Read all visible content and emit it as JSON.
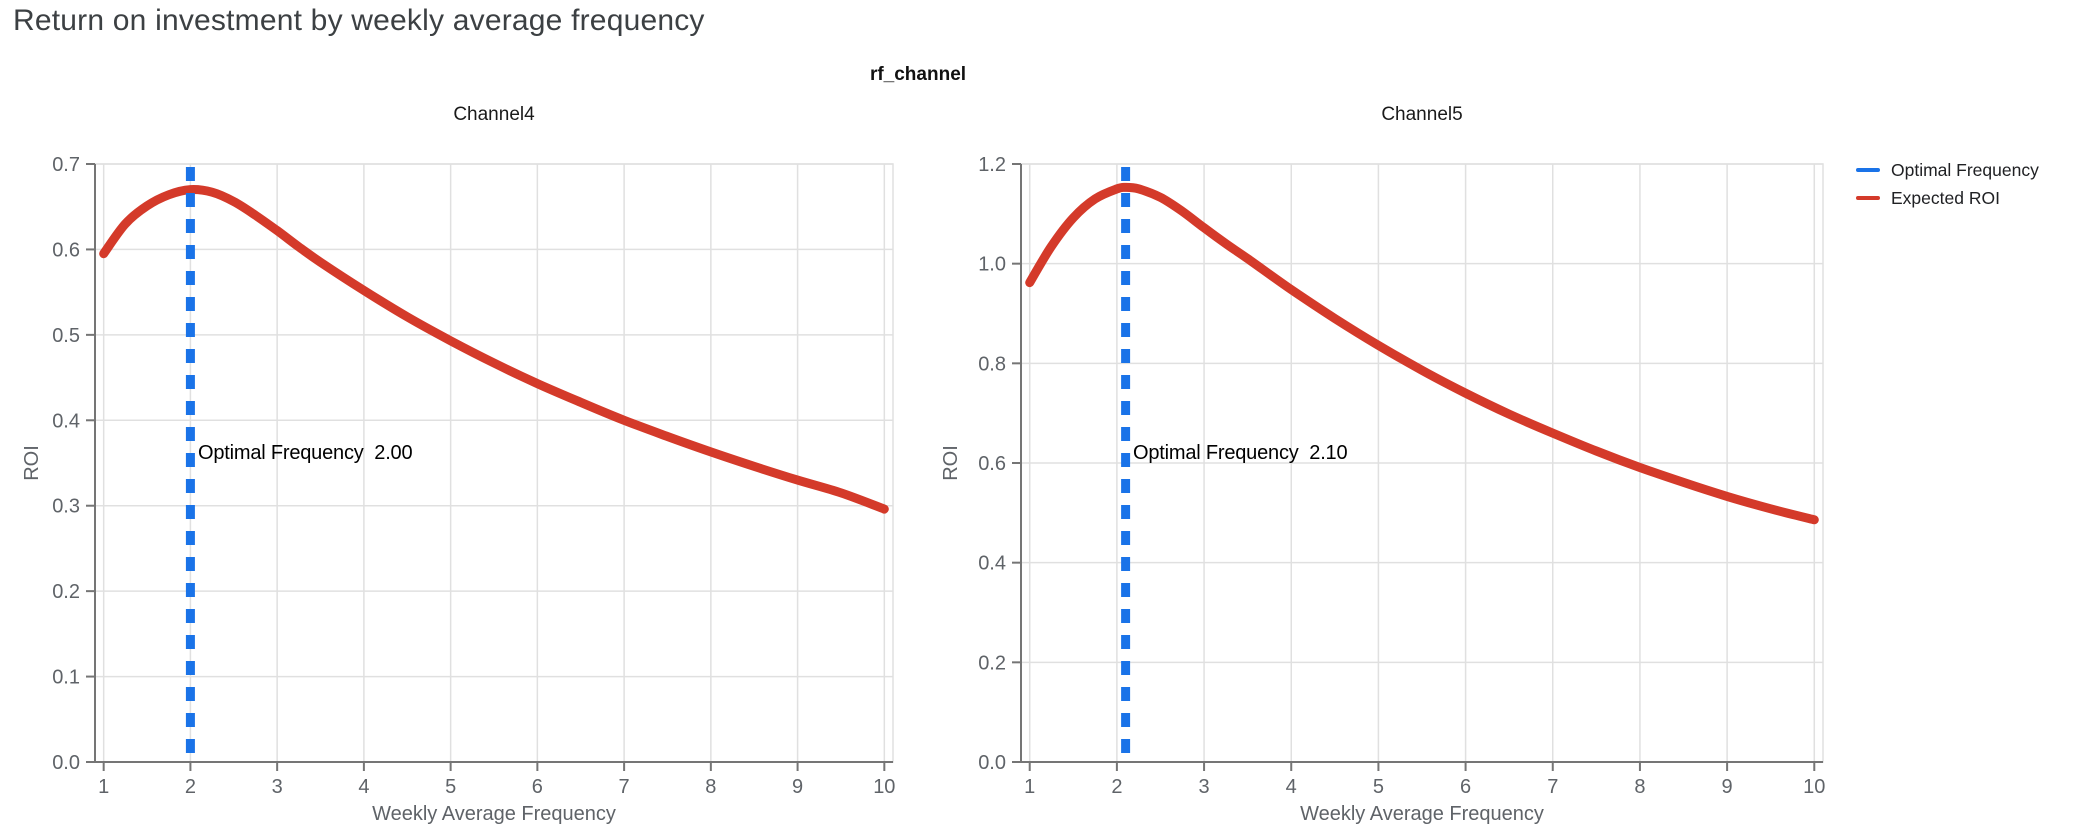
{
  "header": {
    "title": "Return on investment by weekly average frequency",
    "facet_label": "rf_channel"
  },
  "legend": {
    "items": [
      {
        "label": "Optimal Frequency",
        "color": "#1a73e8"
      },
      {
        "label": "Expected ROI",
        "color": "#d43a2a"
      }
    ]
  },
  "colors": {
    "grid": "#e0e0e0",
    "axis": "#757575",
    "tick_label": "#5f6368",
    "title_text": "#3c4043"
  },
  "chart_data": [
    {
      "type": "line",
      "title": "Channel4",
      "xlabel": "Weekly Average Frequency",
      "ylabel": "ROI",
      "xlim": [
        0.9,
        10.1
      ],
      "ylim": [
        0.0,
        0.7
      ],
      "xticks": [
        1,
        2,
        3,
        4,
        5,
        6,
        7,
        8,
        9,
        10
      ],
      "xtick_labels": [
        "1",
        "2",
        "3",
        "4",
        "5",
        "6",
        "7",
        "8",
        "9",
        "10"
      ],
      "yticks": [
        0.0,
        0.1,
        0.2,
        0.3,
        0.4,
        0.5,
        0.6,
        0.7
      ],
      "ytick_labels": [
        "0.0",
        "0.1",
        "0.2",
        "0.3",
        "0.4",
        "0.5",
        "0.6",
        "0.7"
      ],
      "grid": true,
      "annotation": "Optimal Frequency  2.00",
      "vline": {
        "name": "Optimal Frequency",
        "x": 2.0,
        "color": "#1a73e8",
        "style": "dashed"
      },
      "series": [
        {
          "name": "Expected ROI",
          "color": "#d43a2a",
          "points": [
            [
              1,
              0.595
            ],
            [
              1.25,
              0.63
            ],
            [
              1.5,
              0.651
            ],
            [
              1.75,
              0.664
            ],
            [
              2,
              0.67
            ],
            [
              2.25,
              0.667
            ],
            [
              2.5,
              0.656
            ],
            [
              2.75,
              0.64
            ],
            [
              3,
              0.622
            ],
            [
              3.25,
              0.603
            ],
            [
              3.5,
              0.585
            ],
            [
              4,
              0.552
            ],
            [
              4.5,
              0.521
            ],
            [
              5,
              0.493
            ],
            [
              5.5,
              0.467
            ],
            [
              6,
              0.443
            ],
            [
              6.5,
              0.421
            ],
            [
              7,
              0.4
            ],
            [
              7.5,
              0.381
            ],
            [
              8,
              0.363
            ],
            [
              8.5,
              0.346
            ],
            [
              9,
              0.33
            ],
            [
              9.5,
              0.315
            ],
            [
              10,
              0.296
            ]
          ]
        }
      ]
    },
    {
      "type": "line",
      "title": "Channel5",
      "xlabel": "Weekly Average Frequency",
      "ylabel": "ROI",
      "xlim": [
        0.9,
        10.1
      ],
      "ylim": [
        0.0,
        1.2
      ],
      "xticks": [
        1,
        2,
        3,
        4,
        5,
        6,
        7,
        8,
        9,
        10
      ],
      "xtick_labels": [
        "1",
        "2",
        "3",
        "4",
        "5",
        "6",
        "7",
        "8",
        "9",
        "10"
      ],
      "yticks": [
        0.0,
        0.2,
        0.4,
        0.6,
        0.8,
        1.0,
        1.2
      ],
      "ytick_labels": [
        "0.0",
        "0.2",
        "0.4",
        "0.6",
        "0.8",
        "1.0",
        "1.2"
      ],
      "grid": true,
      "annotation": "Optimal Frequency  2.10",
      "vline": {
        "name": "Optimal Frequency",
        "x": 2.1,
        "color": "#1a73e8",
        "style": "dashed"
      },
      "series": [
        {
          "name": "Expected ROI",
          "color": "#d43a2a",
          "points": [
            [
              1,
              0.962
            ],
            [
              1.25,
              1.035
            ],
            [
              1.5,
              1.092
            ],
            [
              1.75,
              1.13
            ],
            [
              2,
              1.15
            ],
            [
              2.1,
              1.153
            ],
            [
              2.25,
              1.15
            ],
            [
              2.5,
              1.133
            ],
            [
              2.75,
              1.105
            ],
            [
              3,
              1.072
            ],
            [
              3.25,
              1.04
            ],
            [
              3.5,
              1.01
            ],
            [
              4,
              0.948
            ],
            [
              4.5,
              0.89
            ],
            [
              5,
              0.836
            ],
            [
              5.5,
              0.786
            ],
            [
              6,
              0.74
            ],
            [
              6.5,
              0.698
            ],
            [
              7,
              0.66
            ],
            [
              7.5,
              0.624
            ],
            [
              8,
              0.591
            ],
            [
              8.5,
              0.561
            ],
            [
              9,
              0.533
            ],
            [
              9.5,
              0.508
            ],
            [
              10,
              0.486
            ]
          ]
        }
      ]
    }
  ]
}
